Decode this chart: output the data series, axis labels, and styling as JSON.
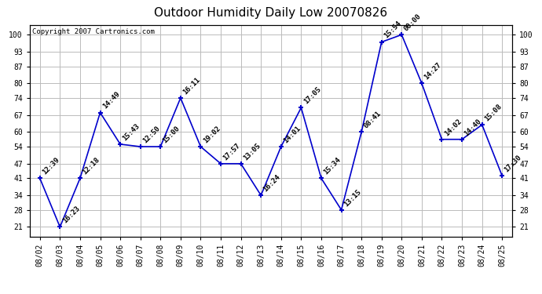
{
  "title": "Outdoor Humidity Daily Low 20070826",
  "copyright": "Copyright 2007 Cartronics.com",
  "dates": [
    "08/02",
    "08/03",
    "08/04",
    "08/05",
    "08/06",
    "08/07",
    "08/08",
    "08/09",
    "08/10",
    "08/11",
    "08/12",
    "08/13",
    "08/14",
    "08/15",
    "08/16",
    "08/17",
    "08/18",
    "08/19",
    "08/20",
    "08/21",
    "08/22",
    "08/23",
    "08/24",
    "08/25"
  ],
  "values": [
    41,
    21,
    41,
    68,
    55,
    54,
    54,
    74,
    54,
    47,
    47,
    34,
    54,
    70,
    41,
    28,
    60,
    97,
    100,
    80,
    57,
    57,
    63,
    42
  ],
  "labels": [
    "12:39",
    "16:23",
    "12:18",
    "14:49",
    "15:43",
    "12:50",
    "15:00",
    "16:11",
    "19:02",
    "17:57",
    "13:05",
    "16:24",
    "14:01",
    "17:05",
    "15:34",
    "13:15",
    "08:41",
    "15:54",
    "00:00",
    "14:27",
    "14:02",
    "14:40",
    "15:08",
    "17:30"
  ],
  "yticks": [
    21,
    28,
    34,
    41,
    47,
    54,
    60,
    67,
    74,
    80,
    87,
    93,
    100
  ],
  "ylim": [
    17,
    104
  ],
  "line_color": "#0000cc",
  "marker_color": "#0000cc",
  "bg_color": "#ffffff",
  "plot_bg_color": "#ffffff",
  "grid_color": "#bbbbbb",
  "title_fontsize": 11,
  "label_fontsize": 6.5,
  "tick_fontsize": 7,
  "copyright_fontsize": 6.5
}
